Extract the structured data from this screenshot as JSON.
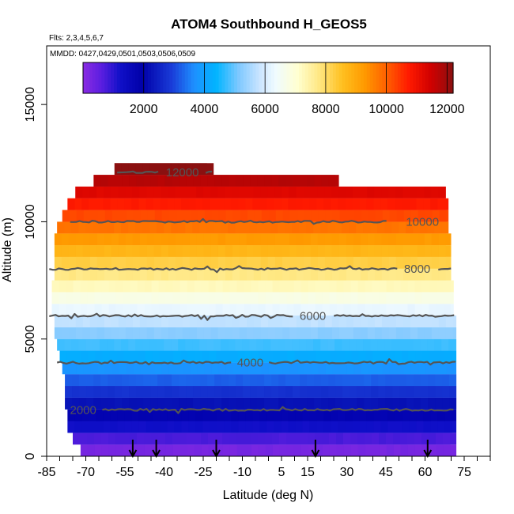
{
  "chart_data": {
    "type": "heatmap",
    "title": "ATOM4 Southbound H_GEOS5",
    "flights_label": "Flts: 2,3,4,5,6,7",
    "dates_label": "MMDD: 0427,0429,0501,0503,0506,0509",
    "xlabel": "Latitude (deg N)",
    "ylabel": "Altitude (m)",
    "xlim": [
      -85,
      85
    ],
    "ylim": [
      0,
      17500
    ],
    "x_tick_values": [
      -85,
      -70,
      -55,
      -40,
      -25,
      -10,
      5,
      15,
      30,
      45,
      60,
      75
    ],
    "x_tick_labels": [
      "-85",
      "-70",
      "-55",
      "-40",
      "-25",
      "-10",
      "5",
      "15",
      "30",
      "45",
      "60",
      "75"
    ],
    "y_tick_values": [
      0,
      5000,
      10000,
      15000
    ],
    "y_tick_labels": [
      "0",
      "5000",
      "10000",
      "15000"
    ],
    "colorbar": {
      "range": [
        0,
        12200
      ],
      "tick_values": [
        2000,
        4000,
        6000,
        8000,
        10000,
        12000
      ],
      "tick_labels": [
        "2000",
        "4000",
        "6000",
        "8000",
        "10000",
        "12000"
      ],
      "stops": [
        [
          0,
          "#8a2be2"
        ],
        [
          0.05,
          "#5a1ee0"
        ],
        [
          0.1,
          "#1010c8"
        ],
        [
          0.16,
          "#0000a8"
        ],
        [
          0.24,
          "#1a3cd8"
        ],
        [
          0.3,
          "#1e90ff"
        ],
        [
          0.36,
          "#00b4ff"
        ],
        [
          0.42,
          "#7ec8ff"
        ],
        [
          0.48,
          "#cde6ff"
        ],
        [
          0.52,
          "#f0fbff"
        ],
        [
          0.58,
          "#ffffd0"
        ],
        [
          0.64,
          "#ffe680"
        ],
        [
          0.7,
          "#ffc020"
        ],
        [
          0.76,
          "#ff9a00"
        ],
        [
          0.82,
          "#ff6000"
        ],
        [
          0.88,
          "#ff1a00"
        ],
        [
          0.94,
          "#d00000"
        ],
        [
          1,
          "#8b1010"
        ]
      ]
    },
    "field": {
      "description": "Geopotential height (m) equals altitude (m); colored by value",
      "layer_altitudes_m": [
        250,
        750,
        1250,
        1750,
        2250,
        2750,
        3250,
        3750,
        4250,
        4750,
        5250,
        5750,
        6250,
        6750,
        7250,
        7750,
        8250,
        8750,
        9250,
        9750,
        10250,
        10750,
        11250,
        11750,
        12250
      ],
      "layer_lat_min": [
        -72,
        -75,
        -77,
        -77,
        -78,
        -78,
        -78,
        -79,
        -80,
        -81,
        -82,
        -82,
        -83,
        -83,
        -83,
        -82,
        -82,
        -82,
        -82,
        -81,
        -79,
        -77,
        -74,
        -67,
        -59
      ],
      "layer_lat_max": [
        72,
        72,
        72,
        72,
        72,
        72,
        72,
        72,
        72,
        72,
        72,
        72,
        71,
        71,
        71,
        70,
        70,
        70,
        70,
        69,
        69,
        69,
        68,
        27,
        -21
      ]
    },
    "contours": [
      {
        "level": 2000,
        "label": "2000",
        "altitude_m": 1980,
        "lat_range": [
          -77,
          72
        ],
        "label_lat": -71
      },
      {
        "level": 4000,
        "label": "4000",
        "altitude_m": 3990,
        "lat_range": [
          -81,
          72
        ],
        "label_lat": -7
      },
      {
        "level": 6000,
        "label": "6000",
        "altitude_m": 5990,
        "lat_range": [
          -84,
          72
        ],
        "label_lat": 17
      },
      {
        "level": 8000,
        "label": "8000",
        "altitude_m": 7990,
        "lat_range": [
          -84,
          70
        ],
        "label_lat": 57
      },
      {
        "level": 10000,
        "label": "10000",
        "altitude_m": 10000,
        "lat_range": [
          -76,
          46
        ],
        "label_lat": 59
      },
      {
        "level": 12000,
        "label": "12000",
        "altitude_m": 12100,
        "lat_range": [
          -58,
          -21
        ],
        "label_lat": -33
      }
    ],
    "arrows_lat": [
      -52,
      -43,
      -20,
      18,
      61
    ]
  }
}
